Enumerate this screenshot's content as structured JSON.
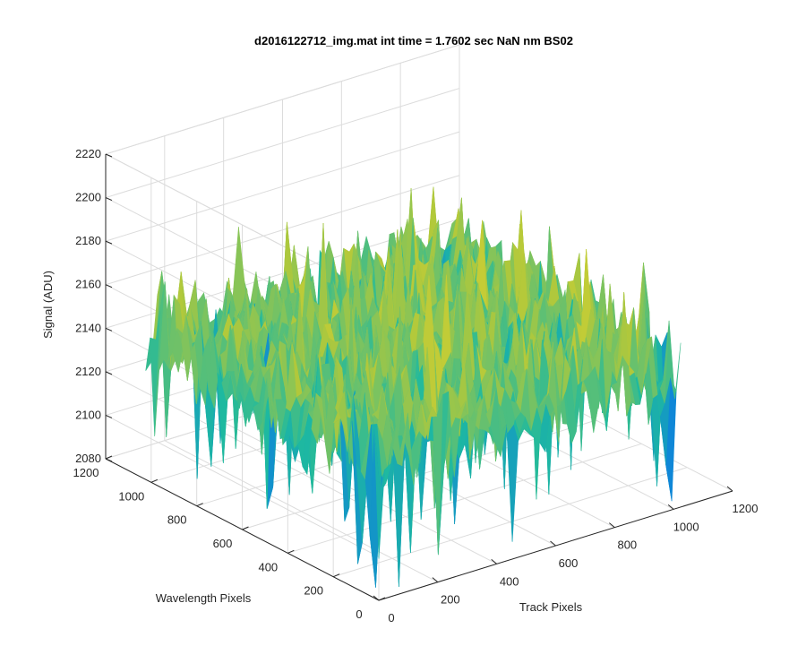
{
  "chart_data": {
    "type": "surface",
    "title": "d2016122712_img.mat int time = 1.7602 sec  NaN nm BS02",
    "xlabel": "Track Pixels",
    "ylabel": "Wavelength Pixels",
    "zlabel": "Signal (ADU)",
    "x_ticks": [
      "0",
      "200",
      "400",
      "600",
      "800",
      "1000",
      "1200"
    ],
    "y_ticks": [
      "0",
      "200",
      "400",
      "600",
      "800",
      "1000",
      "1200"
    ],
    "z_ticks": [
      "2080",
      "2100",
      "2120",
      "2140",
      "2160",
      "2180",
      "2200",
      "2220"
    ],
    "xlim": [
      0,
      1200
    ],
    "ylim": [
      0,
      1200
    ],
    "zlim": [
      2080,
      2220
    ],
    "data_extent": {
      "x": [
        0,
        1024
      ],
      "y": [
        0,
        1024
      ]
    },
    "mean_signal": 2145,
    "signal_range_approx": [
      2085,
      2205
    ],
    "grid": true,
    "colormap": "parula"
  }
}
